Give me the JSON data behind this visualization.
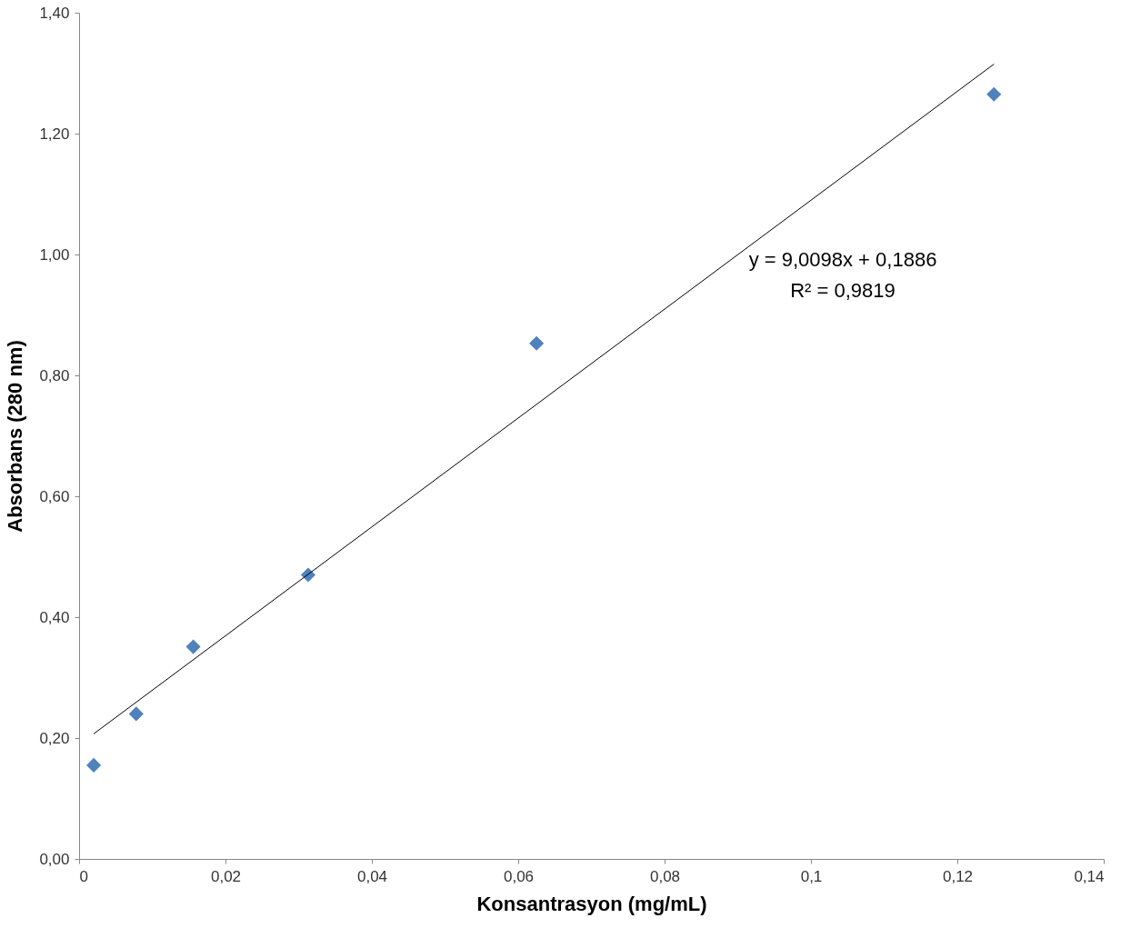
{
  "chart_data": {
    "type": "scatter",
    "xlabel": "Konsantrasyon (mg/mL)",
    "ylabel": "Absorbans (280 nm)",
    "annotations": [
      "y = 9,0098x + 0,1886",
      "R² = 0,9819"
    ],
    "series": [
      {
        "color": "#4f81bd",
        "marker": "diamond",
        "x": [
          0.002,
          0.0078,
          0.0156,
          0.0313,
          0.0625,
          0.125
        ],
        "values": [
          0.155,
          0.24,
          0.351,
          0.47,
          0.853,
          1.265
        ]
      },
      {
        "type": "line",
        "color": "#000000",
        "line_style": "solid",
        "x": [
          0.002,
          0.125
        ],
        "values": [
          0.207,
          1.315
        ]
      }
    ],
    "xlim": [
      0,
      0.14
    ],
    "xticks": [
      {
        "value": 0,
        "label": "0"
      },
      {
        "value": 0.02,
        "label": "0,02"
      },
      {
        "value": 0.04,
        "label": "0,04"
      },
      {
        "value": 0.06,
        "label": "0,06"
      },
      {
        "value": 0.08,
        "label": "0,08"
      },
      {
        "value": 0.1,
        "label": "0,1"
      },
      {
        "value": 0.12,
        "label": "0,12"
      },
      {
        "value": 0.14,
        "label": "0,14"
      }
    ],
    "ylim": [
      0,
      1.4
    ],
    "yticks": [
      {
        "value": 0,
        "label": "0,00"
      },
      {
        "value": 0.2,
        "label": "0,20"
      },
      {
        "value": 0.4,
        "label": "0,40"
      },
      {
        "value": 0.6,
        "label": "0,60"
      },
      {
        "value": 0.8,
        "label": "0,80"
      },
      {
        "value": 1.0,
        "label": "1,00"
      },
      {
        "value": 1.2,
        "label": "1,20"
      },
      {
        "value": 1.4,
        "label": "1,40"
      }
    ],
    "grid": false
  }
}
